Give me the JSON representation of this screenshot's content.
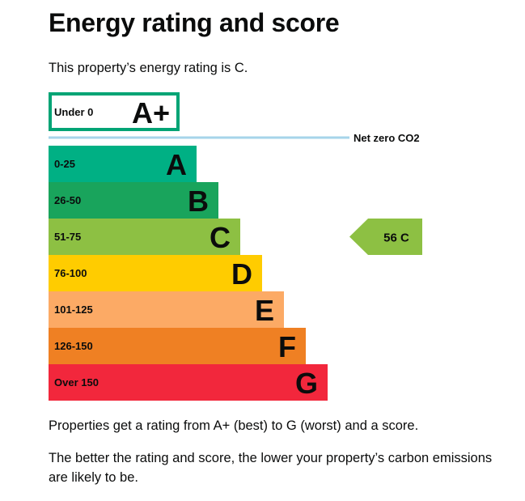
{
  "page": {
    "title": "Energy rating and score",
    "intro": "This property’s energy rating is C.",
    "explanation_1": "Properties get a rating from A+ (best) to G (worst) and a score.",
    "explanation_2": "The better the rating and score, the lower your property’s carbon emissions are likely to be."
  },
  "chart_data": {
    "type": "bar",
    "categories": [
      "A+",
      "A",
      "B",
      "C",
      "D",
      "E",
      "F",
      "G"
    ],
    "bands": [
      {
        "letter": "A+",
        "range": "Under 0",
        "color": "#00a475",
        "outlined": true
      },
      {
        "letter": "A",
        "range": "0-25",
        "color": "#00b084"
      },
      {
        "letter": "B",
        "range": "26-50",
        "color": "#19a45c"
      },
      {
        "letter": "C",
        "range": "51-75",
        "color": "#8dc043"
      },
      {
        "letter": "D",
        "range": "76-100",
        "color": "#ffcc00"
      },
      {
        "letter": "E",
        "range": "101-125",
        "color": "#fcaa65"
      },
      {
        "letter": "F",
        "range": "126-150",
        "color": "#ef8023"
      },
      {
        "letter": "G",
        "range": "Over 150",
        "color": "#f2273c"
      }
    ],
    "net_zero_label": "Net zero CO2",
    "net_zero_line_color": "#a6d4ea",
    "current": {
      "score": 56,
      "letter": "C",
      "label": "56  C",
      "color": "#8dc043"
    }
  }
}
